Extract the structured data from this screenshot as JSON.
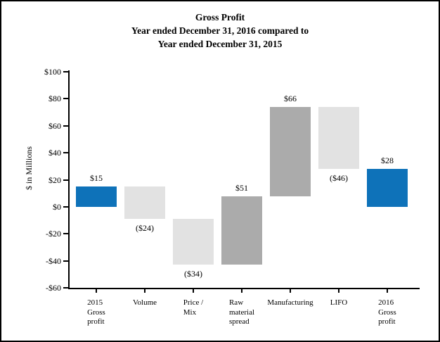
{
  "title": {
    "line1": "Gross Profit",
    "line2": "Year ended December 31, 2016 compared to",
    "line3": "Year ended December 31, 2015"
  },
  "y_axis": {
    "label": "$ in Millions"
  },
  "chart_data": {
    "type": "bar",
    "subtype": "waterfall",
    "title": "Gross Profit — Year ended December 31, 2016 compared to Year ended December 31, 2015",
    "xlabel": "",
    "ylabel": "$ in Millions",
    "ylim": [
      -60,
      100
    ],
    "grid": false,
    "legend": false,
    "colors": {
      "total": "#0e72b9",
      "increase": "#ababab",
      "decrease": "#e2e2e2"
    },
    "y_ticks": [
      {
        "label": "$100",
        "value": 100
      },
      {
        "label": "$80",
        "value": 80
      },
      {
        "label": "$60",
        "value": 60
      },
      {
        "label": "$40",
        "value": 40
      },
      {
        "label": "$20",
        "value": 20
      },
      {
        "label": "$0",
        "value": 0
      },
      {
        "label": "-$20",
        "value": -20
      },
      {
        "label": "-$40",
        "value": -40
      },
      {
        "label": "-$60",
        "value": -60
      }
    ],
    "categories": [
      "2015 Gross profit",
      "Volume",
      "Price / Mix",
      "Raw material spread",
      "Manufacturing",
      "LIFO",
      "2016 Gross profit"
    ],
    "values": [
      15,
      -24,
      -34,
      51,
      66,
      -46,
      28
    ],
    "bars": [
      {
        "slug": "2015-gross-profit",
        "category_lines": [
          "2015",
          "Gross",
          "profit"
        ],
        "type": "total",
        "value": 15,
        "value_label": "$15",
        "label_position": "above"
      },
      {
        "slug": "volume",
        "category_lines": [
          "Volume"
        ],
        "type": "delta",
        "value": -24,
        "value_label": "($24)",
        "label_position": "below"
      },
      {
        "slug": "price-mix",
        "category_lines": [
          "Price /",
          "Mix"
        ],
        "type": "delta",
        "value": -34,
        "value_label": "($34)",
        "label_position": "below"
      },
      {
        "slug": "raw-material-spread",
        "category_lines": [
          "Raw",
          "material",
          "spread"
        ],
        "type": "delta",
        "value": 51,
        "value_label": "$51",
        "label_position": "above"
      },
      {
        "slug": "manufacturing",
        "category_lines": [
          "Manufacturing"
        ],
        "type": "delta",
        "value": 66,
        "value_label": "$66",
        "label_position": "above"
      },
      {
        "slug": "lifo",
        "category_lines": [
          "LIFO"
        ],
        "type": "delta",
        "value": -46,
        "value_label": "($46)",
        "label_position": "below"
      },
      {
        "slug": "2016-gross-profit",
        "category_lines": [
          "2016",
          "Gross",
          "profit"
        ],
        "type": "total",
        "value": 28,
        "value_label": "$28",
        "label_position": "above"
      }
    ]
  }
}
